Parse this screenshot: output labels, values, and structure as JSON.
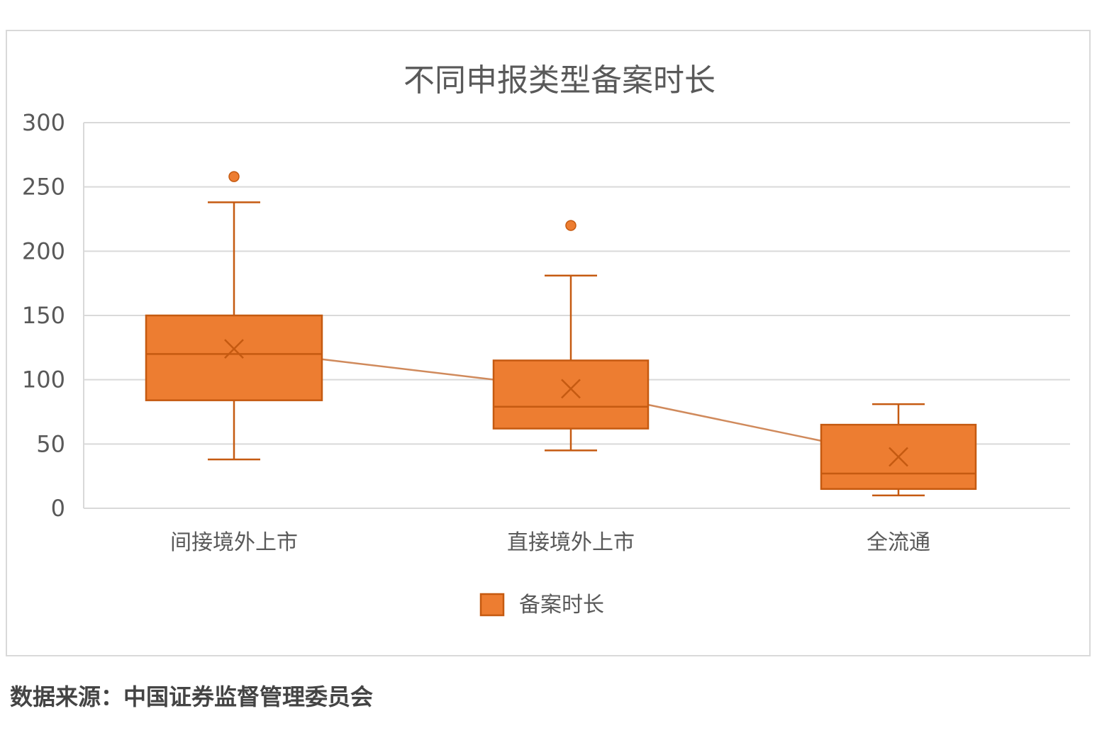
{
  "chart_data": {
    "type": "box",
    "title": "不同申报类型备案时长",
    "xlabel": "",
    "ylabel": "",
    "ylim": [
      0,
      300
    ],
    "yticks": [
      0,
      50,
      100,
      150,
      200,
      250,
      300
    ],
    "grid": true,
    "legend_position": "bottom",
    "categories": [
      "间接境外上市",
      "直接境外上市",
      "全流通"
    ],
    "series": [
      {
        "name": "备案时长",
        "color": "#ED7D31",
        "edge_color": "#C55A11",
        "boxes": [
          {
            "category": "间接境外上市",
            "whisker_low": 38,
            "q1": 84,
            "median": 120,
            "q3": 150,
            "whisker_high": 238,
            "mean": 124,
            "outliers": [
              258
            ]
          },
          {
            "category": "直接境外上市",
            "whisker_low": 45,
            "q1": 62,
            "median": 79,
            "q3": 115,
            "whisker_high": 181,
            "mean": 93,
            "outliers": [
              220
            ]
          },
          {
            "category": "全流通",
            "whisker_low": 10,
            "q1": 15,
            "median": 27,
            "q3": 65,
            "whisker_high": 81,
            "mean": 40,
            "outliers": []
          }
        ]
      }
    ]
  },
  "source_note": "数据来源：中国证券监督管理委员会"
}
